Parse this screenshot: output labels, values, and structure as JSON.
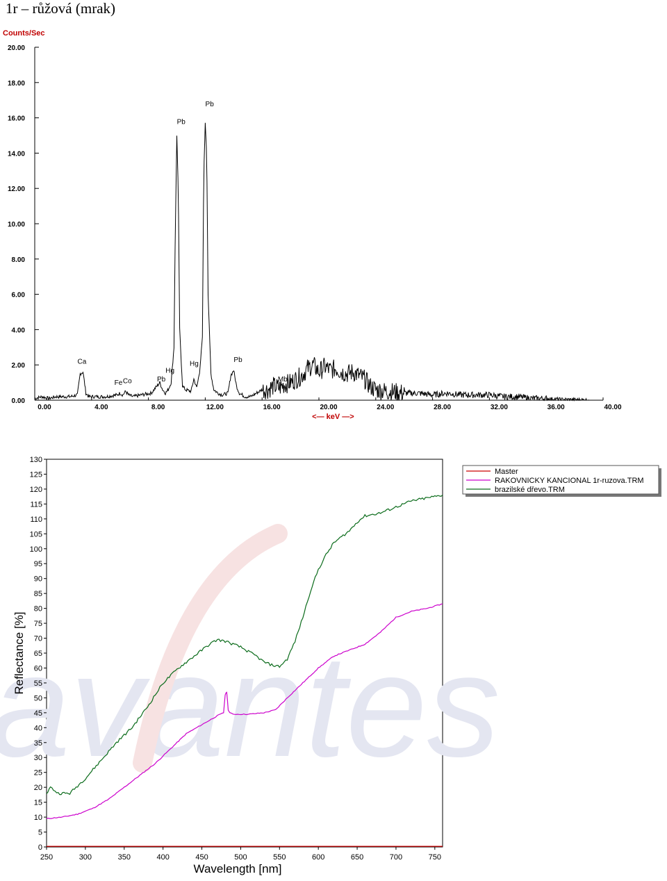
{
  "page": {
    "title": "1r – růžová (mrak)"
  },
  "chart_data": [
    {
      "type": "line",
      "ylabel": "Counts/Sec",
      "xlabel": "<— keV —>",
      "xlim": [
        0,
        40
      ],
      "ylim": [
        0,
        20
      ],
      "x_ticks": [
        "0.00",
        "4.00",
        "8.00",
        "12.00",
        "16.00",
        "20.00",
        "24.00",
        "28.00",
        "32.00",
        "36.00",
        "40.00"
      ],
      "y_ticks": [
        "0.00",
        "2.00",
        "4.00",
        "6.00",
        "8.00",
        "10.00",
        "12.00",
        "14.00",
        "16.00",
        "18.00",
        "20.00"
      ],
      "grid": false,
      "series": [
        {
          "color": "#000000",
          "x": [
            0.0,
            0.5,
            1.0,
            1.5,
            2.0,
            2.5,
            3.0,
            3.2,
            3.4,
            3.6,
            3.8,
            4.0,
            5.0,
            5.8,
            6.0,
            6.2,
            6.4,
            6.6,
            6.9,
            7.5,
            8.2,
            8.6,
            8.8,
            9.0,
            9.2,
            9.4,
            9.6,
            9.8,
            9.9,
            10.0,
            10.1,
            10.2,
            10.4,
            10.6,
            11.0,
            11.2,
            11.4,
            11.6,
            11.8,
            11.9,
            12.0,
            12.1,
            12.2,
            12.4,
            12.6,
            12.9,
            13.2,
            13.6,
            13.8,
            14.0,
            14.2,
            14.4,
            14.8,
            15.2,
            15.6,
            16.0,
            16.4,
            16.8,
            17.2,
            17.6,
            18.0,
            18.4,
            18.8,
            19.2,
            19.6,
            20.0,
            20.4,
            20.8,
            21.2,
            21.6,
            22.0,
            22.4,
            22.8,
            23.2,
            23.6,
            24.0,
            24.8,
            26.0,
            27.0,
            28.0,
            29.0,
            30.0,
            31.0,
            32.0,
            33.0,
            34.0,
            35.0,
            36.0,
            37.0,
            39.0
          ],
          "y": [
            0.1,
            0.2,
            0.1,
            0.2,
            0.2,
            0.2,
            0.3,
            1.5,
            1.6,
            0.4,
            0.2,
            0.2,
            0.2,
            0.3,
            0.4,
            0.3,
            0.5,
            0.3,
            0.2,
            0.3,
            0.4,
            0.8,
            1.0,
            0.6,
            0.4,
            0.6,
            1.0,
            3.0,
            10.0,
            15.0,
            12.0,
            4.0,
            0.8,
            0.6,
            0.5,
            1.2,
            0.7,
            1.6,
            3.5,
            13.0,
            15.7,
            14.0,
            6.0,
            1.5,
            0.6,
            0.4,
            0.3,
            0.4,
            1.4,
            1.7,
            0.8,
            0.4,
            0.2,
            0.2,
            0.4,
            0.6,
            0.6,
            0.8,
            0.7,
            0.9,
            1.0,
            1.2,
            1.4,
            1.8,
            2.0,
            1.6,
            1.9,
            1.7,
            1.8,
            1.6,
            1.5,
            1.6,
            1.4,
            1.2,
            0.8,
            0.6,
            0.5,
            0.4,
            0.4,
            0.3,
            0.4,
            0.3,
            0.3,
            0.3,
            0.2,
            0.2,
            0.1,
            0.1,
            0.05,
            0.02
          ]
        }
      ],
      "annotations": [
        {
          "label": "Ca",
          "x": 3.3,
          "y": 1.9
        },
        {
          "label": "Fe",
          "x": 5.9,
          "y": 0.7
        },
        {
          "label": "Co",
          "x": 6.5,
          "y": 0.8
        },
        {
          "label": "Pb",
          "x": 8.9,
          "y": 0.9
        },
        {
          "label": "Hg",
          "x": 9.5,
          "y": 1.4
        },
        {
          "label": "Pb",
          "x": 10.3,
          "y": 15.5
        },
        {
          "label": "Hg",
          "x": 11.2,
          "y": 1.8
        },
        {
          "label": "Pb",
          "x": 12.3,
          "y": 16.5
        },
        {
          "label": "Pb",
          "x": 14.3,
          "y": 2.0
        },
        {
          "label": "Mb",
          "x": 17.4,
          "y": 0.9
        }
      ]
    },
    {
      "type": "line",
      "xlabel": "Wavelength [nm]",
      "ylabel": "Reflectance [%]",
      "xlim": [
        250,
        760
      ],
      "ylim": [
        0,
        130
      ],
      "x_ticks": [
        "250",
        "300",
        "350",
        "400",
        "450",
        "500",
        "550",
        "600",
        "650",
        "700",
        "750"
      ],
      "y_ticks": [
        "0",
        "5",
        "10",
        "15",
        "20",
        "25",
        "30",
        "35",
        "40",
        "45",
        "50",
        "55",
        "60",
        "65",
        "70",
        "75",
        "80",
        "85",
        "90",
        "95",
        "100",
        "105",
        "110",
        "115",
        "120",
        "125",
        "130"
      ],
      "grid": false,
      "legend_position": "right",
      "watermark": "avantes",
      "series": [
        {
          "name": "Master",
          "color": "#cc0000",
          "x": [
            250,
            300,
            350,
            400,
            450,
            500,
            550,
            600,
            650,
            700,
            760
          ],
          "y": [
            0.2,
            0.2,
            0.2,
            0.2,
            0.2,
            0.2,
            0.2,
            0.2,
            0.2,
            0.2,
            0.2
          ]
        },
        {
          "name": "RAKOVNICKY KANCIONAL 1r-ruzova.TRM",
          "color": "#cc00cc",
          "x": [
            250,
            270,
            290,
            310,
            330,
            350,
            370,
            390,
            410,
            430,
            450,
            470,
            478,
            480,
            482,
            484,
            486,
            490,
            510,
            530,
            545,
            560,
            580,
            600,
            620,
            640,
            660,
            680,
            700,
            720,
            740,
            760
          ],
          "y": [
            9.5,
            10,
            11,
            13,
            16,
            20,
            24,
            28,
            33,
            38,
            41,
            44,
            45,
            51,
            52,
            46,
            45,
            44.5,
            44.5,
            45,
            46,
            50,
            55,
            60,
            64,
            66,
            68,
            72,
            77,
            79,
            80,
            81.5
          ]
        },
        {
          "name": "brazilské dřevo.TRM",
          "color": "#0a6b1a",
          "x": [
            250,
            255,
            265,
            280,
            300,
            320,
            340,
            360,
            380,
            400,
            420,
            440,
            460,
            470,
            480,
            490,
            500,
            510,
            520,
            530,
            540,
            550,
            560,
            570,
            580,
            590,
            600,
            610,
            620,
            630,
            640,
            650,
            660,
            680,
            700,
            720,
            740,
            760
          ],
          "y": [
            18,
            20,
            18,
            18,
            23,
            29,
            35,
            40,
            47,
            55,
            60,
            64,
            68,
            69.5,
            69,
            68,
            67,
            65.5,
            64,
            62,
            61,
            60.5,
            63,
            69,
            77,
            86,
            93,
            98,
            102,
            104,
            106,
            109,
            111,
            112,
            114,
            116,
            117,
            118
          ]
        }
      ]
    }
  ]
}
